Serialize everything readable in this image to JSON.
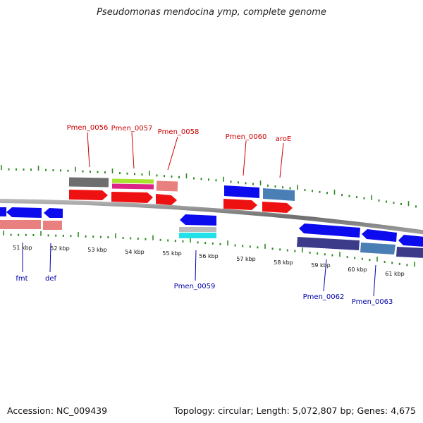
{
  "title": "Pseudomonas mendocina ymp, complete genome",
  "footer": {
    "accession": "Accession: NC_009439",
    "summary": "Topology: circular; Length: 5,072,807 bp; Genes: 4,675"
  },
  "colors": {
    "backbone": "#808080",
    "tick": "#2e8b22",
    "label_red": "#cc0000",
    "label_blue": "#0000aa",
    "gene_blue": "#0b0bee",
    "gene_red": "#ee1111",
    "gene_pink": "#e88080",
    "gene_gray": "#6e6e6e",
    "gene_steel": "#4a7fb5",
    "gene_navy": "#3b3b8a",
    "gene_lime": "#a6e22e",
    "gene_magenta": "#dd2288",
    "gene_cyan": "#22e0e8",
    "gene_silver": "#bbbbbb"
  },
  "kbp_labels": [
    "51 kbp",
    "52 kbp",
    "53 kbp",
    "54 kbp",
    "55 kbp",
    "56 kbp",
    "57 kbp",
    "58 kbp",
    "59 kbp",
    "60 kbp",
    "61 kbp"
  ],
  "gene_labels": [
    {
      "text": "Pmen_0056",
      "strand": "top"
    },
    {
      "text": "Pmen_0057",
      "strand": "top"
    },
    {
      "text": "Pmen_0058",
      "strand": "top"
    },
    {
      "text": "Pmen_0060",
      "strand": "top"
    },
    {
      "text": "aroE",
      "strand": "top"
    },
    {
      "text": "fmt",
      "strand": "bottom"
    },
    {
      "text": "def",
      "strand": "bottom"
    },
    {
      "text": "Pmen_0059",
      "strand": "bottom"
    },
    {
      "text": "Pmen_0062",
      "strand": "bottom"
    },
    {
      "text": "Pmen_0063",
      "strand": "bottom"
    }
  ]
}
